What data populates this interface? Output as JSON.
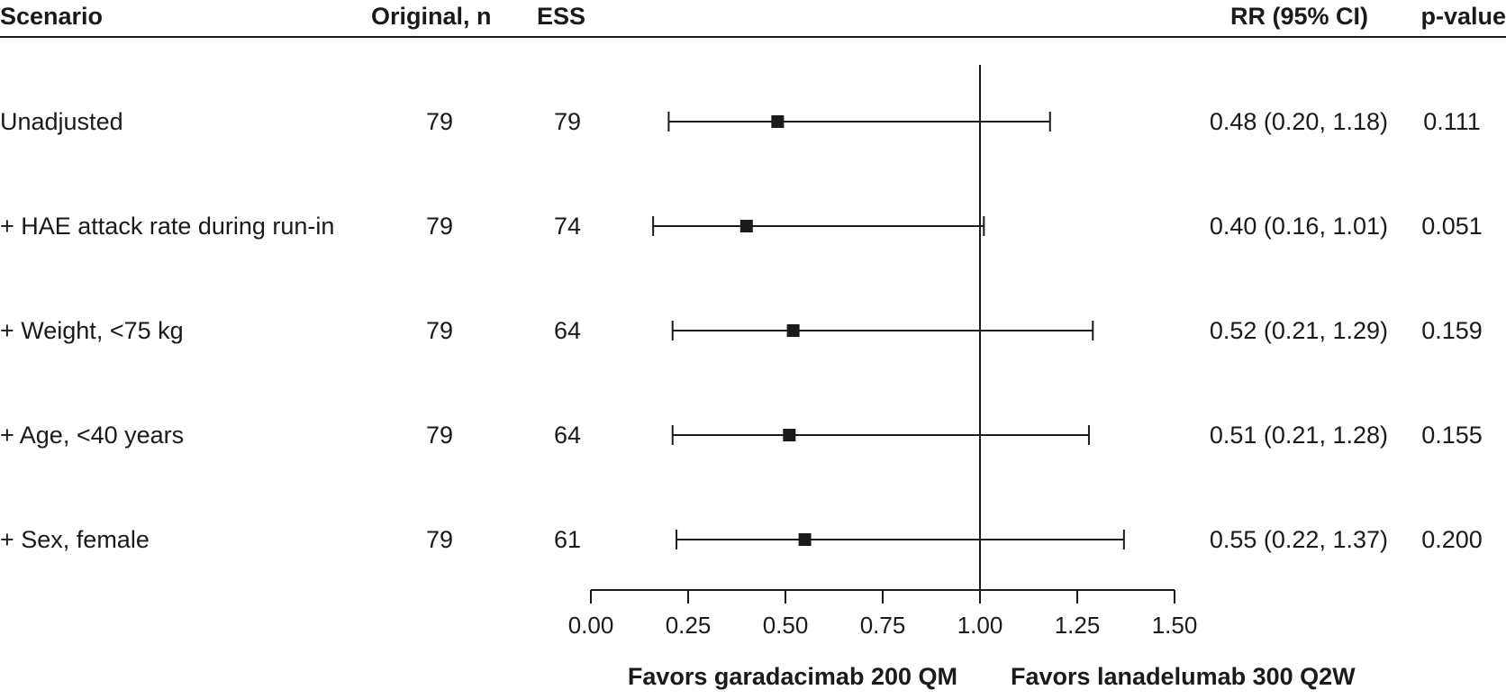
{
  "chart_data": {
    "type": "forest",
    "columns": {
      "scenario": "Scenario",
      "original_n": "Original, n",
      "ess": "ESS",
      "rr_ci": "RR (95% CI)",
      "p_value": "p-value"
    },
    "rows": [
      {
        "scenario": "Unadjusted",
        "original_n": "79",
        "ess": "79",
        "rr": 0.48,
        "lo": 0.2,
        "hi": 1.18,
        "rr_ci_text": "0.48 (0.20, 1.18)",
        "p_value": "0.111"
      },
      {
        "scenario": "+ HAE attack rate during run-in",
        "original_n": "79",
        "ess": "74",
        "rr": 0.4,
        "lo": 0.16,
        "hi": 1.01,
        "rr_ci_text": "0.40 (0.16, 1.01)",
        "p_value": "0.051"
      },
      {
        "scenario": "+ Weight, <75 kg",
        "original_n": "79",
        "ess": "64",
        "rr": 0.52,
        "lo": 0.21,
        "hi": 1.29,
        "rr_ci_text": "0.52 (0.21, 1.29)",
        "p_value": "0.159"
      },
      {
        "scenario": "+ Age, <40 years",
        "original_n": "79",
        "ess": "64",
        "rr": 0.51,
        "lo": 0.21,
        "hi": 1.28,
        "rr_ci_text": "0.51 (0.21, 1.28)",
        "p_value": "0.155"
      },
      {
        "scenario": "+ Sex, female",
        "original_n": "79",
        "ess": "61",
        "rr": 0.55,
        "lo": 0.22,
        "hi": 1.37,
        "rr_ci_text": "0.55 (0.22, 1.37)",
        "p_value": "0.200"
      }
    ],
    "xlim": [
      0,
      1.5
    ],
    "xticks": [
      "0.00",
      "0.25",
      "0.50",
      "0.75",
      "1.00",
      "1.25",
      "1.50"
    ],
    "reference_line": 1.0,
    "favors_left": "Favors garadacimab 200 QM",
    "favors_right": "Favors lanadelumab 300 Q2W"
  }
}
